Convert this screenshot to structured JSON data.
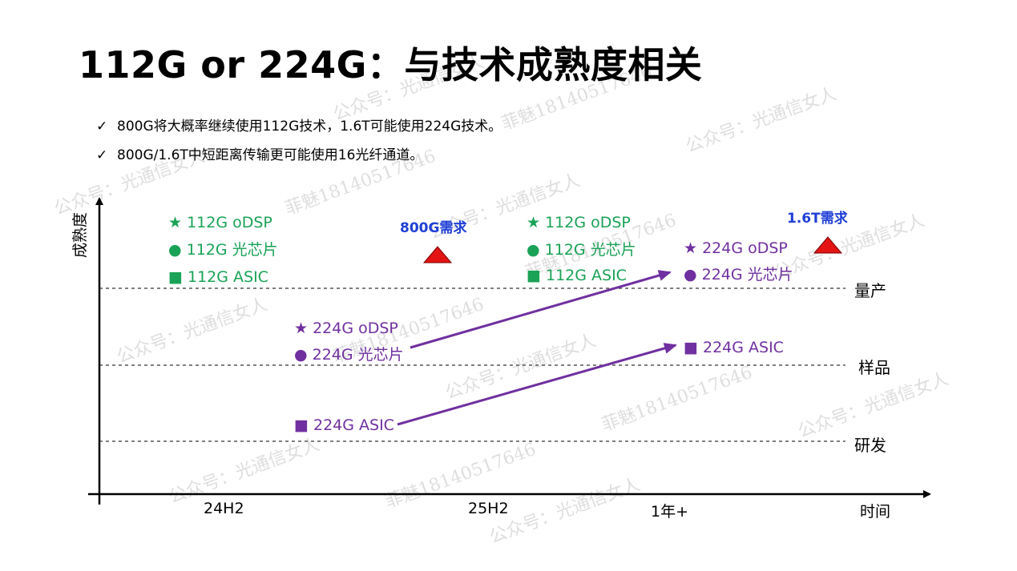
{
  "title": "112G or 224G：与技术成熟度相关",
  "bullets": [
    "800G将大概率继续使用112G技术，1.6T可能使用224G技术。",
    "800G/1.6T中短距离传输更可能使用16光纤通道。"
  ],
  "check_mark": "✓",
  "y_axis_label": "成熟度",
  "x_axis_label": "时间",
  "levels": {
    "production": "量产",
    "sample": "样品",
    "rnd": "研发"
  },
  "x_ticks": [
    "24H2",
    "25H2",
    "1年+"
  ],
  "demands": {
    "d800": "800G需求",
    "d16t": "1.6T需求"
  },
  "groups": {
    "g112_24h2": {
      "odsp": "★ 112G oDSP",
      "chip": "● 112G 光芯片",
      "asic": "■ 112G ASIC"
    },
    "g112_25h2": {
      "odsp": "★ 112G oDSP",
      "chip": "● 112G 光芯片",
      "asic": "■ 112G ASIC"
    },
    "g224_24h2": {
      "odsp": "★ 224G oDSP",
      "chip": "● 224G 光芯片",
      "asic": "■ 224G ASIC"
    },
    "g224_1y": {
      "odsp": "★ 224G oDSP",
      "chip": "● 224G 光芯片",
      "asic": "■ 224G ASIC"
    }
  },
  "watermarks": [
    "公众号：光通信女人",
    "菲魅18140517646"
  ],
  "colors": {
    "green": "#1aa256",
    "purple": "#7030a0",
    "demand_text": "#1f3fd6",
    "triangle": "#e41414"
  }
}
